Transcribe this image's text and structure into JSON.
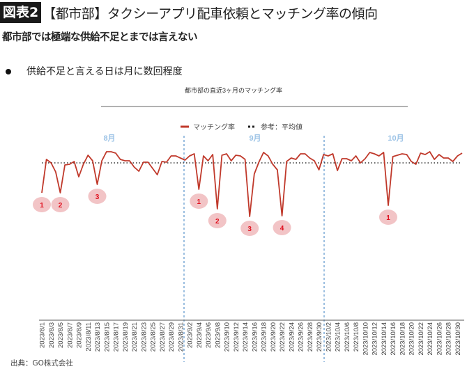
{
  "header": {
    "badge": "図表2",
    "title": "【都市部】タクシーアプリ配車依頼とマッチング率の傾向"
  },
  "subtitle": "都市部では極端な供給不足とまでは言えない",
  "bullet": "供給不足と言える日は月に数回程度",
  "source": "出典：GO株式会社",
  "chart_data": {
    "type": "line",
    "title": "都市部の直近3ヶ月のマッチング率",
    "xlabel": "",
    "ylabel": "",
    "y_axis_printed": false,
    "grid": false,
    "legend_placement": "top-center",
    "legend": [
      "マッチング率",
      "参考：平均値"
    ],
    "colors": {
      "series": "#c0392b",
      "average": "#333333",
      "divider": "#3a7fc1",
      "month_label": "#9cc3e6",
      "marker_fill": "#f2c4c6",
      "marker_text": "#e0101e"
    },
    "months": [
      "8月",
      "9月",
      "10月"
    ],
    "start_date": "2023/8/1",
    "tick_labels": [
      "2023/8/1",
      "2023/8/3",
      "2023/8/5",
      "2023/8/7",
      "2023/8/9",
      "2023/8/11",
      "2023/8/13",
      "2023/8/15",
      "2023/8/17",
      "2023/8/19",
      "2023/8/21",
      "2023/8/23",
      "2023/8/25",
      "2023/8/27",
      "2023/8/29",
      "2023/8/31",
      "2023/9/2",
      "2023/9/4",
      "2023/9/6",
      "2023/9/8",
      "2023/9/10",
      "2023/9/12",
      "2023/9/14",
      "2023/9/16",
      "2023/9/18",
      "2023/9/20",
      "2023/9/22",
      "2023/9/24",
      "2023/9/26",
      "2023/9/28",
      "2023/9/30",
      "2023/10/2",
      "2023/10/4",
      "2023/10/6",
      "2023/10/8",
      "2023/10/10",
      "2023/10/12",
      "2023/10/14",
      "2023/10/16",
      "2023/10/18",
      "2023/10/20",
      "2023/10/22",
      "2023/10/24",
      "2023/10/26",
      "2023/10/28",
      "2023/10/30"
    ],
    "average": 100,
    "ylim": [
      50,
      112
    ],
    "series": [
      {
        "name": "マッチング率",
        "values": [
          78.5,
          102.5,
          100,
          93.5,
          78.5,
          98.5,
          99,
          101,
          90,
          99,
          105.5,
          101.5,
          84.5,
          101.5,
          108,
          108,
          107,
          102.5,
          101.5,
          101.5,
          97,
          94,
          100.5,
          100.5,
          96,
          91.5,
          101,
          100.5,
          105,
          105,
          103.5,
          102,
          105,
          106.5,
          81,
          105,
          101.5,
          106,
          67,
          105.5,
          106.5,
          101.5,
          105.5,
          105,
          102.5,
          61.5,
          92,
          100.5,
          107.5,
          105,
          99,
          95,
          62,
          101,
          103.5,
          102.5,
          106.5,
          106.5,
          103.5,
          101.5,
          95,
          106,
          105,
          106.5,
          94.5,
          103,
          103,
          101.5,
          105,
          100,
          103,
          107.5,
          106.5,
          105,
          107.5,
          69.5,
          104.5,
          105.5,
          106.5,
          106,
          101,
          99,
          107,
          106,
          108,
          102.5,
          106,
          103.5,
          103.5,
          101,
          105,
          107
        ]
      }
    ],
    "annotations": [
      {
        "label": "1",
        "date": "2023/8/1"
      },
      {
        "label": "2",
        "date": "2023/8/5"
      },
      {
        "label": "3",
        "date": "2023/8/13"
      },
      {
        "label": "1",
        "date": "2023/9/4"
      },
      {
        "label": "2",
        "date": "2023/9/8"
      },
      {
        "label": "3",
        "date": "2023/9/15"
      },
      {
        "label": "4",
        "date": "2023/9/22"
      },
      {
        "label": "1",
        "date": "2023/10/15"
      }
    ]
  }
}
